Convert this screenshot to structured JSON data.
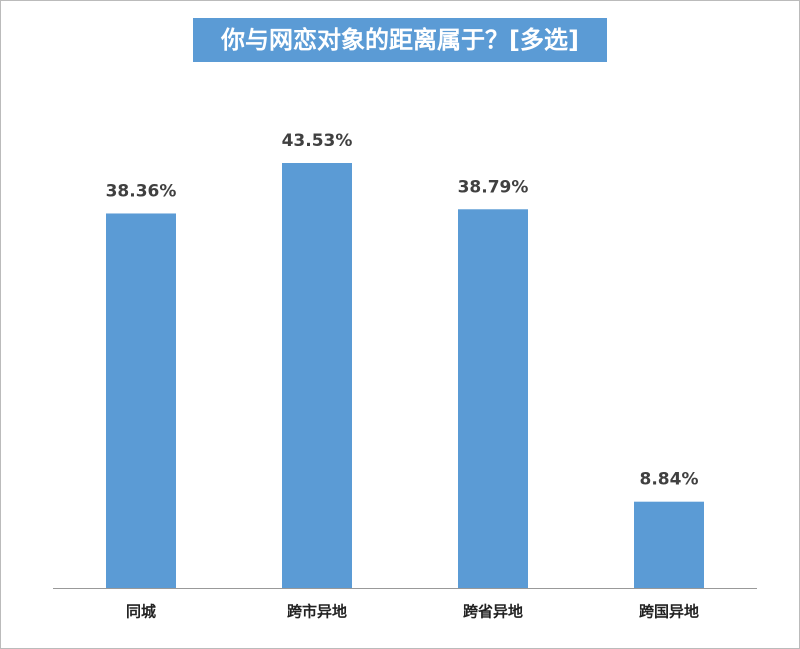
{
  "chart_data": {
    "type": "bar",
    "title": "你与网恋对象的距离属于？[多选]",
    "categories": [
      "同城",
      "跨市异地",
      "跨省异地",
      "跨国异地"
    ],
    "values": [
      38.36,
      43.53,
      38.79,
      8.84
    ],
    "value_labels": [
      "38.36%",
      "43.53%",
      "38.79%",
      "8.84%"
    ],
    "color": "#5b9bd5"
  }
}
